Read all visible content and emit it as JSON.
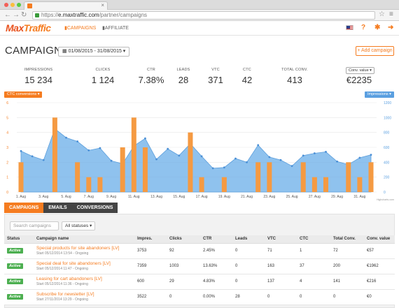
{
  "browser": {
    "url_scheme": "https://",
    "url_host": "e.maxtraffic.com",
    "url_path": "/partner/campaigns"
  },
  "header": {
    "logo_part1": "Max",
    "logo_part2": "Traffic",
    "nav": [
      {
        "icon": "bar-chart-icon",
        "label": "CAMPAIGNS",
        "active": true
      },
      {
        "icon": "bar-chart-icon",
        "label": "AFFILIATE",
        "active": false
      }
    ],
    "icons": [
      "us-flag-icon",
      "help-icon",
      "gear-icon",
      "logout-icon"
    ],
    "help_glyph": "?"
  },
  "page": {
    "title": "CAMPAIGNS",
    "date_range": "01/08/2015 - 31/08/2015",
    "add_label": "+ Add campaign"
  },
  "stats": [
    {
      "label": "IMPRESSIONS",
      "value": "15 234"
    },
    {
      "label": "CLICKS",
      "value": "1 124"
    },
    {
      "label": "CTR",
      "value": "7.38%"
    },
    {
      "label": "LEADS",
      "value": "28"
    },
    {
      "label": "VTC",
      "value": "371"
    },
    {
      "label": "CTC",
      "value": "42"
    },
    {
      "label": "TOTAL CONV.",
      "value": "413"
    },
    {
      "label": "",
      "value": "€2235"
    }
  ],
  "conv_select": "Conv. value",
  "chart_data": {
    "type": "bar+area",
    "left_pill": "CTC conversions",
    "right_pill": "Impressions",
    "credit": "Highcharts.com",
    "y_left_ticks": [
      0,
      1,
      2,
      3,
      4,
      5,
      6
    ],
    "y_left_max": 6,
    "y_right_ticks": [
      0,
      200,
      400,
      600,
      800,
      1000,
      1200
    ],
    "y_right_max": 1200,
    "x_labels": [
      "1. Aug",
      "3. Aug",
      "5. Aug",
      "7. Aug",
      "9. Aug",
      "11. Aug",
      "13. Aug",
      "15. Aug",
      "17. Aug",
      "19. Aug",
      "21. Aug",
      "23. Aug",
      "25. Aug",
      "27. Aug",
      "29. Aug",
      "31. Aug"
    ],
    "series": [
      {
        "name": "CTC conversions",
        "type": "bar",
        "color": "#f59a42",
        "values": [
          2,
          0,
          0,
          5,
          0,
          2,
          1,
          1,
          0,
          3,
          5,
          3,
          0,
          0,
          0,
          4,
          1,
          0,
          1,
          0,
          0,
          2,
          2,
          0,
          0,
          2,
          1,
          1,
          0,
          2,
          1,
          2
        ]
      },
      {
        "name": "Impressions",
        "type": "area",
        "color": "#6aaee8",
        "values": [
          550,
          480,
          430,
          850,
          730,
          680,
          560,
          590,
          420,
          380,
          620,
          720,
          440,
          580,
          490,
          650,
          480,
          320,
          330,
          450,
          400,
          630,
          470,
          430,
          350,
          490,
          520,
          540,
          410,
          370,
          460,
          500
        ]
      }
    ]
  },
  "tabs": [
    "CAMPAIGNS",
    "EMAILS",
    "CONVERSIONS"
  ],
  "filters": {
    "search_placeholder": "Search campaigns",
    "status_select": "All statuses"
  },
  "table": {
    "columns": [
      "Status",
      "Campaign name",
      "Impres.",
      "Clicks",
      "CTR",
      "Leads",
      "VTC",
      "CTC",
      "Total Conv.",
      "Conv. value"
    ],
    "rows": [
      {
        "status": "Active",
        "name": "Special products for site abandoners [LV]",
        "start": "Start 05/12/2014 13:54 - Ongoing",
        "impres": "3753",
        "clicks": "92",
        "ctr": "2.45%",
        "leads": "0",
        "vtc": "71",
        "ctc": "1",
        "total": "72",
        "value": "€57"
      },
      {
        "status": "Active",
        "name": "Special deal for site abandoners [LV]",
        "start": "Start 05/12/2014 11:47 - Ongoing",
        "impres": "7359",
        "clicks": "1003",
        "ctr": "13.63%",
        "leads": "0",
        "vtc": "163",
        "ctc": "37",
        "total": "200",
        "value": "€1962"
      },
      {
        "status": "Active",
        "name": "Leasing for cart abandoners [LV]",
        "start": "Start 05/12/2014 11:36 - Ongoing",
        "impres": "600",
        "clicks": "29",
        "ctr": "4.83%",
        "leads": "0",
        "vtc": "137",
        "ctc": "4",
        "total": "141",
        "value": "€216"
      },
      {
        "status": "Active",
        "name": "Subscribe for newsletter [LV]",
        "start": "Start 27/11/2014 13:29 - Ongoing",
        "impres": "3522",
        "clicks": "0",
        "ctr": "0.00%",
        "leads": "28",
        "vtc": "0",
        "ctc": "0",
        "total": "0",
        "value": "€0"
      }
    ]
  }
}
